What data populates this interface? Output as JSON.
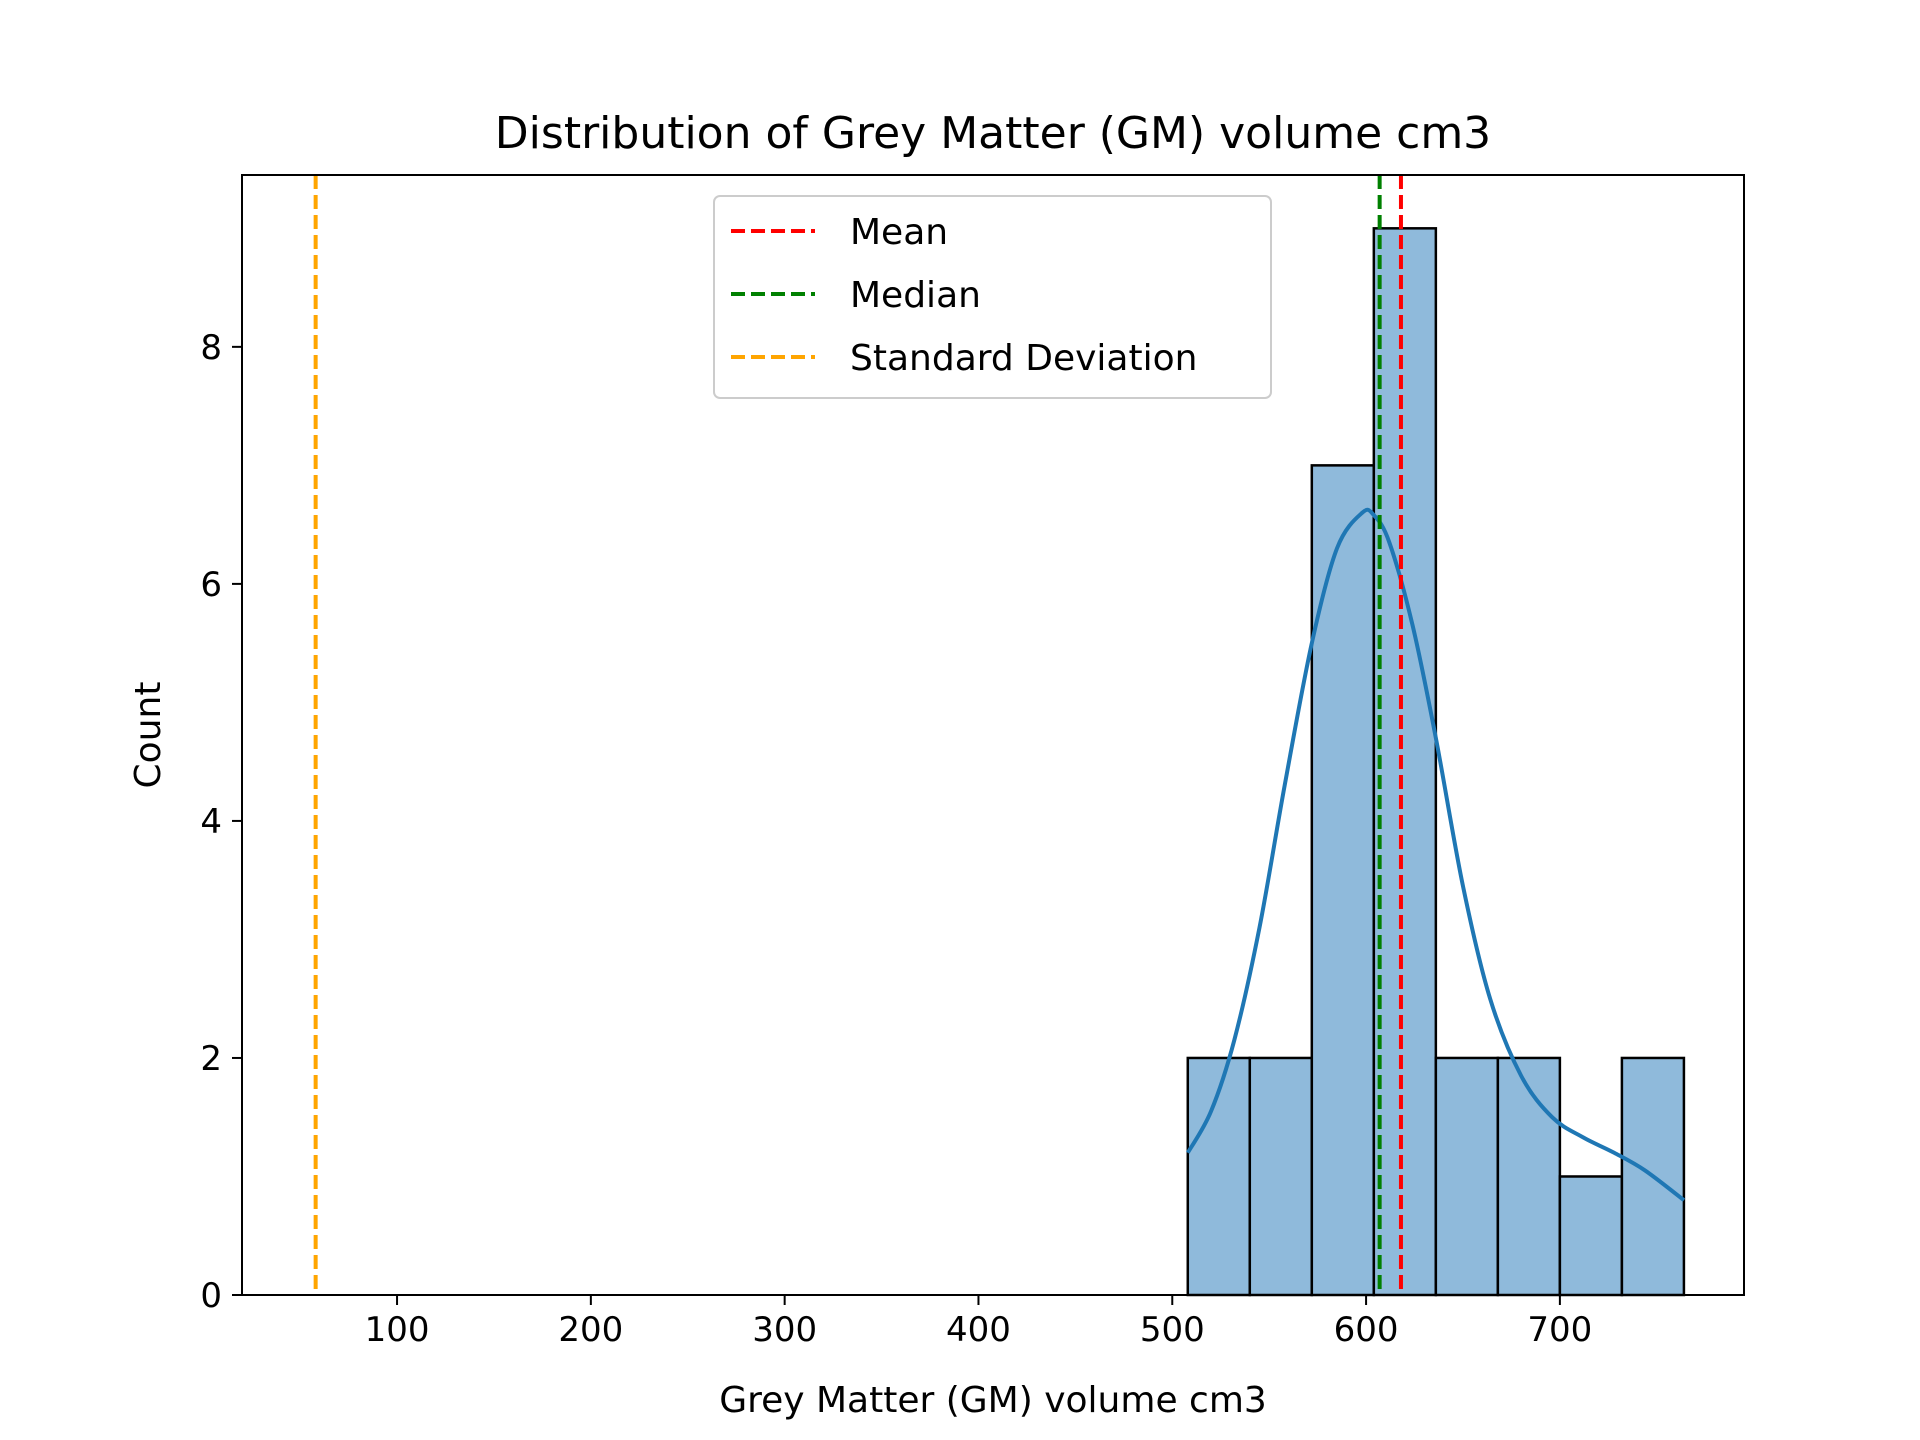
{
  "chart_data": {
    "type": "bar",
    "title": "Distribution of Grey Matter (GM) volume cm3",
    "xlabel": "Grey Matter (GM) volume cm3",
    "ylabel": "Count",
    "xlim": [
      20,
      795
    ],
    "ylim": [
      0,
      9.45
    ],
    "xticks": [
      100,
      200,
      300,
      400,
      500,
      600,
      700
    ],
    "yticks": [
      0,
      2,
      4,
      6,
      8
    ],
    "bins": [
      {
        "x0": 508,
        "x1": 540,
        "count": 2
      },
      {
        "x0": 540,
        "x1": 572,
        "count": 2
      },
      {
        "x0": 572,
        "x1": 604,
        "count": 7
      },
      {
        "x0": 604,
        "x1": 636,
        "count": 9
      },
      {
        "x0": 636,
        "x1": 668,
        "count": 2
      },
      {
        "x0": 668,
        "x1": 700,
        "count": 2
      },
      {
        "x0": 700,
        "x1": 732,
        "count": 1
      },
      {
        "x0": 732,
        "x1": 764,
        "count": 2
      }
    ],
    "kde": {
      "x": [
        508,
        520,
        532,
        545,
        558,
        572,
        585,
        598,
        604,
        612,
        624,
        636,
        650,
        664,
        680,
        696,
        712,
        728,
        744,
        764
      ],
      "y": [
        1.2,
        1.55,
        2.15,
        3.1,
        4.3,
        5.5,
        6.3,
        6.6,
        6.58,
        6.35,
        5.65,
        4.7,
        3.45,
        2.5,
        1.85,
        1.5,
        1.33,
        1.2,
        1.05,
        0.8
      ]
    },
    "reference_lines": [
      {
        "name": "Mean",
        "x": 618,
        "color": "#ff0000"
      },
      {
        "name": "Median",
        "x": 607,
        "color": "#008000"
      },
      {
        "name": "Standard Deviation",
        "x": 58,
        "color": "#ffa500"
      }
    ],
    "colors": {
      "bar_fill": "#8fbadb",
      "bar_edge": "#000000",
      "kde_line": "#1f77b4"
    },
    "legend_position": "top-center",
    "grid": false
  }
}
